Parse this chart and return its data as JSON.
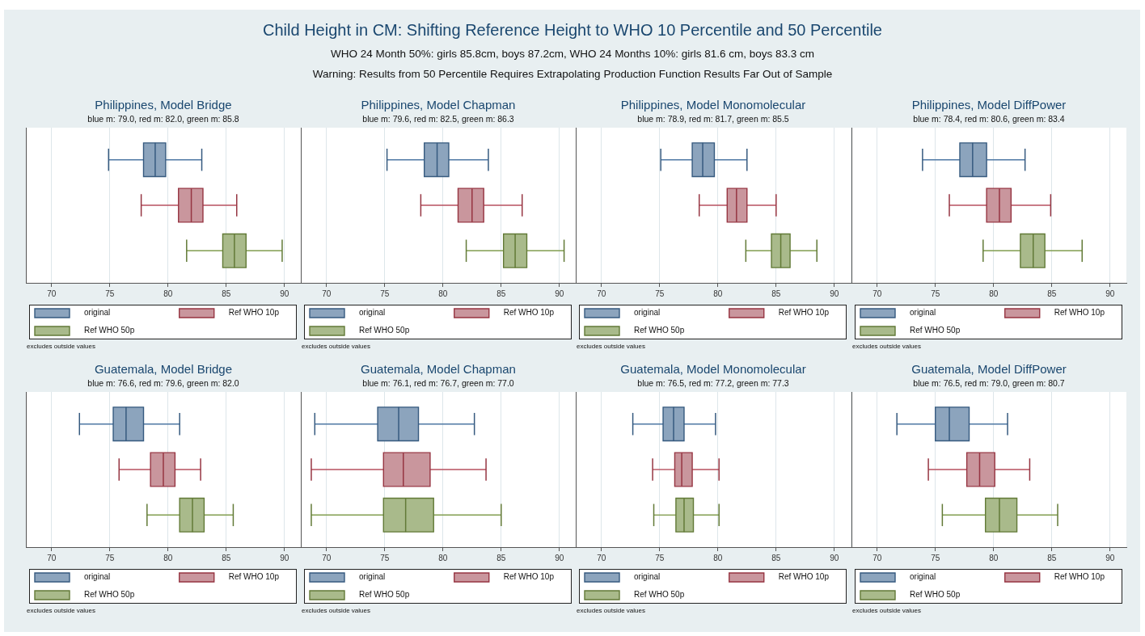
{
  "chart_data": [
    {
      "type": "other",
      "title": "Child Height in CM: Shifting Reference Height to WHO 10 Percentile and 50 Percentile",
      "subtitle": "WHO 24 Month 50%: girls 85.8cm, boys 87.2cm, WHO 24 Months 10%: girls 81.6 cm, boys 83.3 cm",
      "annotations": [
        "Warning: Results from 50 Percentile Requires Extrapolating Production Function Results Far Out of Sample"
      ]
    },
    {
      "type": "box",
      "orientation": "horizontal",
      "title": "Philippines, Model Bridge",
      "subtitle": "blue m: 79.0, red m: 82.0, green m: 85.8",
      "categories": [
        null
      ],
      "series": [
        {
          "name": "original",
          "color": "#8ca4bd",
          "boxes": [
            {
              "low": 74.9,
              "q1": 77.9,
              "median": 78.9,
              "q3": 79.8,
              "high": 82.9
            }
          ]
        },
        {
          "name": "Ref WHO 10p",
          "color": "#c9969d",
          "boxes": [
            {
              "low": 77.7,
              "q1": 80.9,
              "median": 82.0,
              "q3": 83.0,
              "high": 85.9
            }
          ]
        },
        {
          "name": "Ref WHO 50p",
          "color": "#a9ba8b",
          "boxes": [
            {
              "low": 81.6,
              "q1": 84.7,
              "median": 85.7,
              "q3": 86.7,
              "high": 89.8
            }
          ]
        }
      ],
      "xlim": [
        67.8,
        91.4
      ],
      "xticks": [
        70,
        75,
        80,
        85,
        90
      ],
      "grid": "x",
      "legend": "bottom",
      "tick_labels": "x",
      "annotations": [
        "excludes outside values"
      ]
    },
    {
      "type": "box",
      "orientation": "horizontal",
      "title": "Philippines, Model Chapman",
      "subtitle": "blue m: 79.6, red m: 82.5, green m: 86.3",
      "categories": [
        null
      ],
      "series": [
        {
          "name": "original",
          "color": "#8ca4bd",
          "boxes": [
            {
              "low": 75.2,
              "q1": 78.4,
              "median": 79.5,
              "q3": 80.5,
              "high": 83.9
            }
          ]
        },
        {
          "name": "Ref WHO 10p",
          "color": "#c9969d",
          "boxes": [
            {
              "low": 78.1,
              "q1": 81.3,
              "median": 82.5,
              "q3": 83.5,
              "high": 86.8
            }
          ]
        },
        {
          "name": "Ref WHO 50p",
          "color": "#a9ba8b",
          "boxes": [
            {
              "low": 82.0,
              "q1": 85.2,
              "median": 86.2,
              "q3": 87.2,
              "high": 90.4
            }
          ]
        }
      ],
      "xlim": [
        67.8,
        91.4
      ],
      "xticks": [
        70,
        75,
        80,
        85,
        90
      ],
      "grid": "x",
      "legend": "bottom",
      "tick_labels": "x",
      "annotations": [
        "excludes outside values"
      ]
    },
    {
      "type": "box",
      "orientation": "horizontal",
      "title": "Philippines, Model Monomolecular",
      "subtitle": "blue m: 78.9, red m: 81.7, green m: 85.5",
      "categories": [
        null
      ],
      "series": [
        {
          "name": "original",
          "color": "#8ca4bd",
          "boxes": [
            {
              "low": 75.1,
              "q1": 77.8,
              "median": 78.7,
              "q3": 79.7,
              "high": 82.5
            }
          ]
        },
        {
          "name": "Ref WHO 10p",
          "color": "#c9969d",
          "boxes": [
            {
              "low": 78.4,
              "q1": 80.8,
              "median": 81.6,
              "q3": 82.5,
              "high": 85.0
            }
          ]
        },
        {
          "name": "Ref WHO 50p",
          "color": "#a9ba8b",
          "boxes": [
            {
              "low": 82.4,
              "q1": 84.6,
              "median": 85.4,
              "q3": 86.2,
              "high": 88.5
            }
          ]
        }
      ],
      "xlim": [
        67.8,
        91.4
      ],
      "xticks": [
        70,
        75,
        80,
        85,
        90
      ],
      "grid": "x",
      "legend": "bottom",
      "tick_labels": "x",
      "annotations": [
        "excludes outside values"
      ]
    },
    {
      "type": "box",
      "orientation": "horizontal",
      "title": "Philippines, Model DiffPower",
      "subtitle": "blue m: 78.4, red m: 80.6, green m: 83.4",
      "categories": [
        null
      ],
      "series": [
        {
          "name": "original",
          "color": "#8ca4bd",
          "boxes": [
            {
              "low": 73.9,
              "q1": 77.1,
              "median": 78.2,
              "q3": 79.4,
              "high": 82.7
            }
          ]
        },
        {
          "name": "Ref WHO 10p",
          "color": "#c9969d",
          "boxes": [
            {
              "low": 76.2,
              "q1": 79.4,
              "median": 80.5,
              "q3": 81.5,
              "high": 84.9
            }
          ]
        },
        {
          "name": "Ref WHO 50p",
          "color": "#a9ba8b",
          "boxes": [
            {
              "low": 79.1,
              "q1": 82.3,
              "median": 83.4,
              "q3": 84.4,
              "high": 87.6
            }
          ]
        }
      ],
      "xlim": [
        67.8,
        91.4
      ],
      "xticks": [
        70,
        75,
        80,
        85,
        90
      ],
      "grid": "x",
      "legend": "bottom",
      "tick_labels": "x",
      "annotations": [
        "excludes outside values"
      ]
    },
    {
      "type": "box",
      "orientation": "horizontal",
      "title": "Guatemala, Model Bridge",
      "subtitle": "blue m: 76.6, red m: 79.6, green m: 82.0",
      "categories": [
        null
      ],
      "series": [
        {
          "name": "original",
          "color": "#8ca4bd",
          "boxes": [
            {
              "low": 72.4,
              "q1": 75.3,
              "median": 76.4,
              "q3": 77.9,
              "high": 81.0
            }
          ]
        },
        {
          "name": "Ref WHO 10p",
          "color": "#c9969d",
          "boxes": [
            {
              "low": 75.8,
              "q1": 78.5,
              "median": 79.6,
              "q3": 80.6,
              "high": 82.8
            }
          ]
        },
        {
          "name": "Ref WHO 50p",
          "color": "#a9ba8b",
          "boxes": [
            {
              "low": 78.2,
              "q1": 81.0,
              "median": 82.1,
              "q3": 83.1,
              "high": 85.6
            }
          ]
        }
      ],
      "xlim": [
        67.8,
        91.4
      ],
      "xticks": [
        70,
        75,
        80,
        85,
        90
      ],
      "grid": "x",
      "legend": "bottom",
      "tick_labels": "x",
      "annotations": [
        "excludes outside values"
      ]
    },
    {
      "type": "box",
      "orientation": "horizontal",
      "title": "Guatemala, Model Chapman",
      "subtitle": "blue m: 76.1, red m: 76.7, green m: 77.0",
      "categories": [
        null
      ],
      "series": [
        {
          "name": "original",
          "color": "#8ca4bd",
          "boxes": [
            {
              "low": 69.0,
              "q1": 74.4,
              "median": 76.2,
              "q3": 77.9,
              "high": 82.7
            }
          ]
        },
        {
          "name": "Ref WHO 10p",
          "color": "#c9969d",
          "boxes": [
            {
              "low": 68.7,
              "q1": 74.9,
              "median": 76.6,
              "q3": 78.9,
              "high": 83.7
            }
          ]
        },
        {
          "name": "Ref WHO 50p",
          "color": "#a9ba8b",
          "boxes": [
            {
              "low": 68.7,
              "q1": 74.9,
              "median": 76.8,
              "q3": 79.2,
              "high": 85.0
            }
          ]
        }
      ],
      "xlim": [
        67.8,
        91.4
      ],
      "xticks": [
        70,
        75,
        80,
        85,
        90
      ],
      "grid": "x",
      "legend": "bottom",
      "tick_labels": "x",
      "annotations": [
        "excludes outside values"
      ]
    },
    {
      "type": "box",
      "orientation": "horizontal",
      "title": "Guatemala, Model Monomolecular",
      "subtitle": "blue m: 76.5, red m: 77.2, green m: 77.3",
      "categories": [
        null
      ],
      "series": [
        {
          "name": "original",
          "color": "#8ca4bd",
          "boxes": [
            {
              "low": 72.7,
              "q1": 75.3,
              "median": 76.2,
              "q3": 77.1,
              "high": 79.8
            }
          ]
        },
        {
          "name": "Ref WHO 10p",
          "color": "#c9969d",
          "boxes": [
            {
              "low": 74.4,
              "q1": 76.3,
              "median": 76.9,
              "q3": 77.8,
              "high": 80.1
            }
          ]
        },
        {
          "name": "Ref WHO 50p",
          "color": "#a9ba8b",
          "boxes": [
            {
              "low": 74.5,
              "q1": 76.4,
              "median": 77.1,
              "q3": 77.9,
              "high": 80.1
            }
          ]
        }
      ],
      "xlim": [
        67.8,
        91.4
      ],
      "xticks": [
        70,
        75,
        80,
        85,
        90
      ],
      "grid": "x",
      "legend": "bottom",
      "tick_labels": "x",
      "annotations": [
        "excludes outside values"
      ]
    },
    {
      "type": "box",
      "orientation": "horizontal",
      "title": "Guatemala, Model DiffPower",
      "subtitle": "blue m: 76.5, red m: 79.0, green m: 80.7",
      "categories": [
        null
      ],
      "series": [
        {
          "name": "original",
          "color": "#8ca4bd",
          "boxes": [
            {
              "low": 71.7,
              "q1": 75.0,
              "median": 76.2,
              "q3": 77.9,
              "high": 81.2
            }
          ]
        },
        {
          "name": "Ref WHO 10p",
          "color": "#c9969d",
          "boxes": [
            {
              "low": 74.4,
              "q1": 77.7,
              "median": 78.8,
              "q3": 80.1,
              "high": 83.1
            }
          ]
        },
        {
          "name": "Ref WHO 50p",
          "color": "#a9ba8b",
          "boxes": [
            {
              "low": 75.6,
              "q1": 79.3,
              "median": 80.5,
              "q3": 82.0,
              "high": 85.5
            }
          ]
        }
      ],
      "xlim": [
        67.8,
        91.4
      ],
      "xticks": [
        70,
        75,
        80,
        85,
        90
      ],
      "grid": "x",
      "legend": "bottom",
      "tick_labels": "x",
      "annotations": [
        "excludes outside values"
      ]
    }
  ]
}
